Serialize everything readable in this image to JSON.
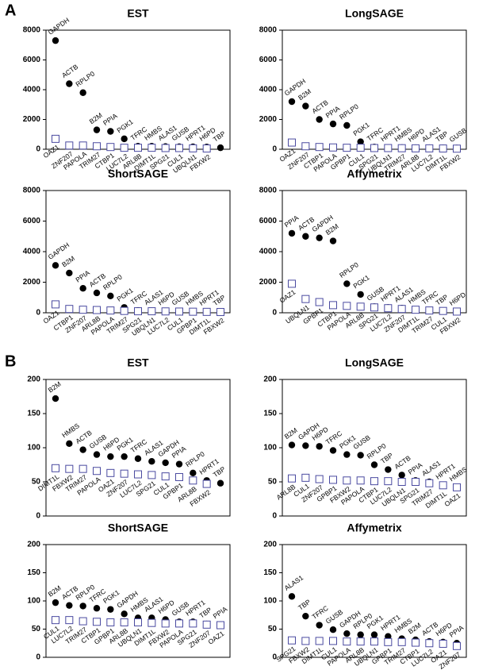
{
  "panel_labels": [
    "A",
    "B"
  ],
  "chart_data": [
    {
      "type": "scatter",
      "title": "EST",
      "ylim": [
        0,
        8000
      ],
      "yticks": [
        0,
        2000,
        4000,
        6000,
        8000
      ],
      "series": [
        {
          "marker": "circle",
          "color": "#000000",
          "labels": [
            "GAPDH",
            "ACTB",
            "RPLP0",
            "B2M",
            "PPIA",
            "PGK1",
            "TFRC",
            "HMBS",
            "ALAS1",
            "GUSB",
            "HPRT1",
            "H6PD",
            "TBP"
          ],
          "values": [
            7300,
            4400,
            3800,
            1300,
            1200,
            700,
            200,
            200,
            180,
            170,
            160,
            150,
            100
          ]
        },
        {
          "marker": "square",
          "color": "#4a4aa0",
          "labels": [
            "OAZ1",
            "ZNF207",
            "PAPOLA",
            "TRIM27",
            "CTBP1",
            "LUC7L2",
            "ARL8B",
            "DIMT1L",
            "SPG21",
            "CUL1",
            "UBQLN1",
            "FBXW2"
          ],
          "values": [
            700,
            250,
            250,
            200,
            150,
            100,
            100,
            100,
            80,
            80,
            60,
            50
          ]
        }
      ]
    },
    {
      "type": "scatter",
      "title": "LongSAGE",
      "ylim": [
        0,
        8000
      ],
      "yticks": [
        0,
        2000,
        4000,
        6000,
        8000
      ],
      "series": [
        {
          "marker": "circle",
          "color": "#000000",
          "labels": [
            "GAPDH",
            "B2M",
            "ACTB",
            "PPIA",
            "RPLP0",
            "PGK1",
            "TFRC",
            "HPRT1",
            "HMBS",
            "H6PD",
            "ALAS1",
            "TBP",
            "GUSB"
          ],
          "values": [
            3200,
            2900,
            2000,
            1700,
            1600,
            500,
            150,
            120,
            110,
            100,
            100,
            90,
            80
          ]
        },
        {
          "marker": "square",
          "color": "#4a4aa0",
          "labels": [
            "OAZ1",
            "ZNF207",
            "CTBP1",
            "PAPOLA",
            "GPBP1",
            "CUL1",
            "SPG21",
            "UBQLN1",
            "TRIM27",
            "ARL8B",
            "LUC7L2",
            "DIMT1L",
            "FBXW2"
          ],
          "values": [
            450,
            200,
            150,
            120,
            100,
            100,
            80,
            80,
            70,
            60,
            60,
            50,
            40
          ]
        }
      ]
    },
    {
      "type": "scatter",
      "title": "ShortSAGE",
      "ylim": [
        0,
        8000
      ],
      "yticks": [
        0,
        2000,
        4000,
        6000,
        8000
      ],
      "series": [
        {
          "marker": "circle",
          "color": "#000000",
          "labels": [
            "GAPDH",
            "B2M",
            "PPIA",
            "ACTB",
            "RPLP0",
            "PGK1",
            "TFRC",
            "ALAS1",
            "H6PD",
            "GUSB",
            "HMBS",
            "HPRT1",
            "TBP"
          ],
          "values": [
            3100,
            2600,
            1600,
            1300,
            1100,
            350,
            150,
            120,
            100,
            100,
            90,
            80,
            70
          ]
        },
        {
          "marker": "square",
          "color": "#4a4aa0",
          "labels": [
            "OAZ1",
            "CTBP1",
            "ZNF207",
            "ARL8B",
            "PAPOLA",
            "TRIM27",
            "SPG21",
            "UBQLN1",
            "LUC7L2",
            "CUL1",
            "GPBP1",
            "DIMT1L",
            "FBXW2"
          ],
          "values": [
            550,
            250,
            200,
            180,
            150,
            120,
            100,
            100,
            90,
            80,
            70,
            60,
            50
          ]
        }
      ]
    },
    {
      "type": "scatter",
      "title": "Affymetrix",
      "ylim": [
        0,
        8000
      ],
      "yticks": [
        0,
        2000,
        4000,
        6000,
        8000
      ],
      "series": [
        {
          "marker": "circle",
          "color": "#000000",
          "labels": [
            "PPIA",
            "ACTB",
            "GAPDH",
            "B2M",
            "RPLP0",
            "PGK1",
            "GUSB",
            "HPRT1",
            "ALAS1",
            "HMBS",
            "TFRC",
            "TBP",
            "H6PD"
          ],
          "values": [
            5200,
            5000,
            4900,
            4700,
            1900,
            1200,
            400,
            350,
            300,
            200,
            150,
            100,
            80
          ]
        },
        {
          "marker": "square",
          "color": "#4a4aa0",
          "labels": [
            "OAZ1",
            "UBQLN1",
            "GPBP1",
            "CTBP1",
            "PAPOLA",
            "ARL8B",
            "SPG21",
            "LUC7L2",
            "ZNF207",
            "DIMT1L",
            "TRIM27",
            "CUL1",
            "FBXW2"
          ],
          "values": [
            1900,
            900,
            700,
            500,
            450,
            400,
            350,
            300,
            250,
            200,
            150,
            120,
            80
          ]
        }
      ]
    },
    {
      "type": "scatter",
      "title": "EST",
      "ylim": [
        0,
        200
      ],
      "yticks": [
        0,
        50,
        100,
        150,
        200
      ],
      "series": [
        {
          "marker": "circle",
          "color": "#000000",
          "labels": [
            "B2M",
            "HMBS",
            "ACTB",
            "GUSB",
            "H6PD",
            "PGK1",
            "TFRC",
            "ALAS1",
            "GAPDH",
            "PPIA",
            "RPLP0",
            "HPRT1",
            "TBP"
          ],
          "values": [
            172,
            106,
            97,
            90,
            87,
            87,
            84,
            80,
            78,
            76,
            63,
            52,
            48
          ]
        },
        {
          "marker": "square",
          "color": "#4a4aa0",
          "labels": [
            "DIMT1L",
            "FBXW2",
            "TRIM27",
            "PAPOLA",
            "OAZ1",
            "ZNF207",
            "LUC7L2",
            "SPG21",
            "CUL1",
            "GPBP1",
            "ARL8B",
            "FBXW2"
          ],
          "values": [
            70,
            69,
            69,
            66,
            63,
            62,
            61,
            60,
            58,
            57,
            52,
            47
          ]
        }
      ]
    },
    {
      "type": "scatter",
      "title": "LongSAGE",
      "ylim": [
        0,
        200
      ],
      "yticks": [
        0,
        50,
        100,
        150,
        200
      ],
      "series": [
        {
          "marker": "circle",
          "color": "#000000",
          "labels": [
            "B2M",
            "GAPDH",
            "H6PD",
            "TFRC",
            "PGK1",
            "GUSB",
            "RPLP0",
            "TBP",
            "ACTB",
            "PPIA",
            "ALAS1",
            "HPRT1",
            "HMBS"
          ],
          "values": [
            104,
            103,
            102,
            96,
            90,
            89,
            75,
            68,
            60,
            52,
            50,
            45,
            42
          ]
        },
        {
          "marker": "square",
          "color": "#4a4aa0",
          "labels": [
            "ARL8B",
            "CUL1",
            "ZNF207",
            "GPBP1",
            "FBXW2",
            "PAPOLA",
            "CTBP1",
            "LUC7L2",
            "UBQLN1",
            "SPG21",
            "TRIM27",
            "DIMT1L",
            "OAZ1"
          ],
          "values": [
            55,
            56,
            54,
            53,
            52,
            52,
            51,
            51,
            50,
            50,
            48,
            45,
            42
          ]
        }
      ]
    },
    {
      "type": "scatter",
      "title": "ShortSAGE",
      "ylim": [
        0,
        200
      ],
      "yticks": [
        0,
        50,
        100,
        150,
        200
      ],
      "series": [
        {
          "marker": "circle",
          "color": "#000000",
          "labels": [
            "B2M",
            "ACTB",
            "RPLP0",
            "TFRC",
            "PGK1",
            "GAPDH",
            "HMBS",
            "ALAS1",
            "H6PD",
            "GUSB",
            "HPRT1",
            "TBP",
            "PPIA"
          ],
          "values": [
            97,
            92,
            91,
            87,
            85,
            77,
            70,
            70,
            67,
            63,
            63,
            59,
            58
          ]
        },
        {
          "marker": "square",
          "color": "#4a4aa0",
          "labels": [
            "CUL1",
            "LUC7L2",
            "TRIM27",
            "CTBP1",
            "GPBP1",
            "ARL8B",
            "UBQLN1",
            "DIMT1L",
            "FBXW2",
            "PAPOLA",
            "SPG21",
            "ZNF207",
            "OAZ1"
          ],
          "values": [
            66,
            66,
            64,
            63,
            62,
            62,
            62,
            61,
            60,
            60,
            60,
            58,
            57
          ]
        }
      ]
    },
    {
      "type": "scatter",
      "title": "Affymetrix",
      "ylim": [
        0,
        200
      ],
      "yticks": [
        0,
        50,
        100,
        150,
        200
      ],
      "series": [
        {
          "marker": "circle",
          "color": "#000000",
          "labels": [
            "ALAS1",
            "TBP",
            "TFRC",
            "GUSB",
            "GAPDH",
            "RPLP0",
            "PGK1",
            "HPRT1",
            "HMBS",
            "B2M",
            "ACTB",
            "H6PD",
            "PPIA"
          ],
          "values": [
            108,
            73,
            57,
            49,
            42,
            40,
            40,
            37,
            33,
            31,
            28,
            27,
            25
          ]
        },
        {
          "marker": "square",
          "color": "#4a4aa0",
          "labels": [
            "SPG21",
            "FBXW2",
            "DIMT1L",
            "CUL1",
            "PAPOLA",
            "ARL8B",
            "UBQLN1",
            "GPBP1",
            "TRIM27",
            "CTBP1",
            "LUC7L2",
            "OAZ1",
            "ZNF207"
          ],
          "values": [
            30,
            29,
            29,
            29,
            28,
            28,
            28,
            27,
            27,
            26,
            25,
            24,
            20
          ]
        }
      ]
    }
  ]
}
